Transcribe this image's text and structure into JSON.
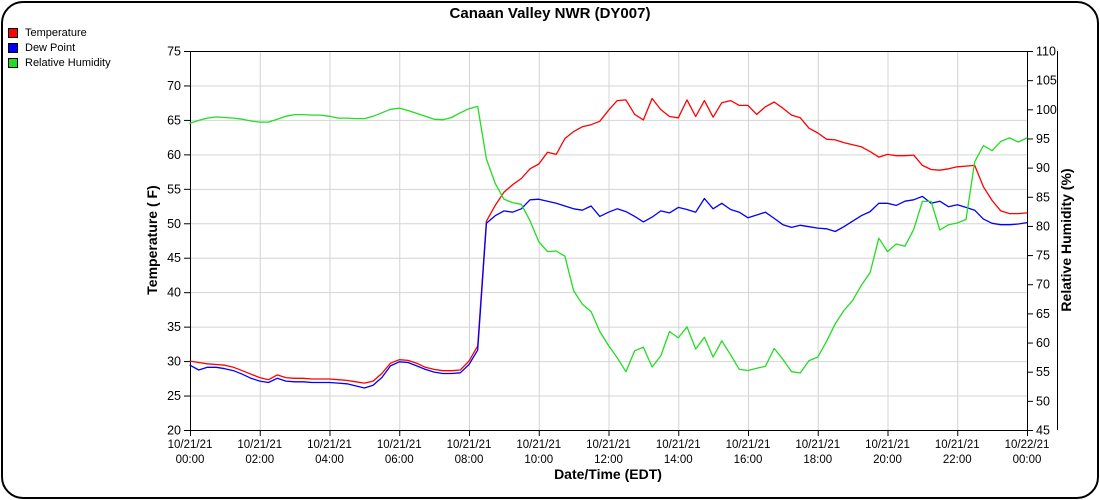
{
  "title": "Canaan Valley NWR (DY007)",
  "legend": {
    "items": [
      {
        "label": "Temperature",
        "color": "#ff0000"
      },
      {
        "label": "Dew Point",
        "color": "#0000ff"
      },
      {
        "label": "Relative Humidity",
        "color": "#22dd22"
      }
    ]
  },
  "axes": {
    "x": {
      "label": "Date/Time (EDT)"
    },
    "y_left": {
      "label": "Temperature ( F)",
      "min": 20,
      "max": 75,
      "ticks": [
        20,
        25,
        30,
        35,
        40,
        45,
        50,
        55,
        60,
        65,
        70,
        75
      ]
    },
    "y_right": {
      "label": "Relative Humidity (%)",
      "min": 45,
      "max": 110,
      "ticks": [
        45,
        50,
        55,
        60,
        65,
        70,
        75,
        80,
        85,
        90,
        95,
        100,
        105,
        110
      ]
    }
  },
  "chart_data": {
    "type": "line",
    "title": "Canaan Valley NWR (DY007)",
    "xlabel": "Date/Time (EDT)",
    "ylabel_left": "Temperature ( F)",
    "ylabel_right": "Relative Humidity (%)",
    "grid": true,
    "grid_color": "#d4d4d4",
    "axis_color": "#000000",
    "legend_position": "top-left",
    "x_ticks": [
      {
        "date": "10/21/21",
        "time": "00:00"
      },
      {
        "date": "10/21/21",
        "time": "02:00"
      },
      {
        "date": "10/21/21",
        "time": "04:00"
      },
      {
        "date": "10/21/21",
        "time": "06:00"
      },
      {
        "date": "10/21/21",
        "time": "08:00"
      },
      {
        "date": "10/21/21",
        "time": "10:00"
      },
      {
        "date": "10/21/21",
        "time": "12:00"
      },
      {
        "date": "10/21/21",
        "time": "14:00"
      },
      {
        "date": "10/21/21",
        "time": "16:00"
      },
      {
        "date": "10/21/21",
        "time": "18:00"
      },
      {
        "date": "10/21/21",
        "time": "20:00"
      },
      {
        "date": "10/21/21",
        "time": "22:00"
      },
      {
        "date": "10/22/21",
        "time": "00:00"
      }
    ],
    "x_hours": [
      0,
      0.25,
      0.5,
      0.75,
      1,
      1.25,
      1.5,
      1.75,
      2,
      2.25,
      2.5,
      2.75,
      3,
      3.25,
      3.5,
      3.75,
      4,
      4.25,
      4.5,
      4.75,
      5,
      5.25,
      5.5,
      5.75,
      6,
      6.25,
      6.5,
      6.75,
      7,
      7.25,
      7.5,
      7.75,
      8,
      8.25,
      8.5,
      8.75,
      9,
      9.25,
      9.5,
      9.75,
      10,
      10.25,
      10.5,
      10.75,
      11,
      11.25,
      11.5,
      11.75,
      12,
      12.25,
      12.5,
      12.75,
      13,
      13.25,
      13.5,
      13.75,
      14,
      14.25,
      14.5,
      14.75,
      15,
      15.25,
      15.5,
      15.75,
      16,
      16.25,
      16.5,
      16.75,
      17,
      17.25,
      17.5,
      17.75,
      18,
      18.25,
      18.5,
      18.75,
      19,
      19.25,
      19.5,
      19.75,
      20,
      20.25,
      20.5,
      20.75,
      21,
      21.25,
      21.5,
      21.75,
      22,
      22.25,
      22.5,
      22.75,
      23,
      23.25,
      23.5,
      23.75,
      24
    ],
    "series": [
      {
        "name": "Temperature",
        "color": "#ff0000",
        "axis": "left",
        "values": [
          30.0,
          29.8,
          29.6,
          29.5,
          29.4,
          29.1,
          28.6,
          28.1,
          27.6,
          27.3,
          28.0,
          27.6,
          27.5,
          27.5,
          27.4,
          27.4,
          27.4,
          27.3,
          27.2,
          27.0,
          26.8,
          27.1,
          28.2,
          29.7,
          30.2,
          30.1,
          29.7,
          29.1,
          28.8,
          28.6,
          28.6,
          28.7,
          30.0,
          32.2,
          50.3,
          52.6,
          54.5,
          55.6,
          56.5,
          57.9,
          58.6,
          60.3,
          60.0,
          62.3,
          63.3,
          64.0,
          64.3,
          64.8,
          66.4,
          67.8,
          67.9,
          65.8,
          65.0,
          68.1,
          66.5,
          65.5,
          65.3,
          67.9,
          65.5,
          67.8,
          65.4,
          67.5,
          67.8,
          67.1,
          67.1,
          65.8,
          66.9,
          67.6,
          66.7,
          65.7,
          65.3,
          63.8,
          63.1,
          62.2,
          62.1,
          61.7,
          61.4,
          61.1,
          60.4,
          59.6,
          60.0,
          59.8,
          59.8,
          59.9,
          58.4,
          57.8,
          57.7,
          57.9,
          58.2,
          58.3,
          58.4,
          55.3,
          53.3,
          51.8,
          51.4,
          51.4,
          51.5
        ]
      },
      {
        "name": "Dew Point",
        "color": "#0000ff",
        "axis": "left",
        "values": [
          29.4,
          28.7,
          29.1,
          29.1,
          28.9,
          28.6,
          28.1,
          27.5,
          27.1,
          26.9,
          27.5,
          27.1,
          27.0,
          27.0,
          26.9,
          26.9,
          26.9,
          26.8,
          26.7,
          26.4,
          26.1,
          26.5,
          27.6,
          29.3,
          29.9,
          29.8,
          29.3,
          28.8,
          28.4,
          28.2,
          28.2,
          28.3,
          29.5,
          31.6,
          50.0,
          51.1,
          51.8,
          51.6,
          52.1,
          53.4,
          53.5,
          53.2,
          52.9,
          52.5,
          52.1,
          51.9,
          52.5,
          51.0,
          51.6,
          52.1,
          51.7,
          51.0,
          50.2,
          50.9,
          51.8,
          51.5,
          52.3,
          52.0,
          51.6,
          53.6,
          52.1,
          52.9,
          52.0,
          51.6,
          50.8,
          51.2,
          51.6,
          50.7,
          49.8,
          49.4,
          49.7,
          49.5,
          49.3,
          49.2,
          48.8,
          49.5,
          50.3,
          51.1,
          51.7,
          52.9,
          52.9,
          52.6,
          53.2,
          53.4,
          53.9,
          52.9,
          53.2,
          52.4,
          52.7,
          52.3,
          51.9,
          50.6,
          50.0,
          49.8,
          49.8,
          49.9,
          50.1
        ]
      },
      {
        "name": "Relative Humidity",
        "color": "#22dd22",
        "axis": "right",
        "values": [
          97.6,
          98.1,
          98.5,
          98.7,
          98.6,
          98.5,
          98.3,
          98.0,
          97.8,
          97.8,
          98.3,
          98.8,
          99.1,
          99.1,
          99.0,
          99.0,
          98.8,
          98.5,
          98.5,
          98.4,
          98.4,
          98.8,
          99.4,
          100.0,
          100.2,
          99.8,
          99.3,
          98.8,
          98.3,
          98.2,
          98.6,
          99.4,
          100.1,
          100.5,
          91.5,
          87.3,
          84.6,
          84.0,
          83.7,
          80.9,
          77.3,
          75.6,
          75.7,
          74.8,
          68.9,
          66.6,
          65.3,
          61.9,
          59.5,
          57.4,
          55.0,
          58.6,
          59.2,
          55.8,
          57.7,
          61.9,
          60.8,
          62.7,
          58.9,
          60.9,
          57.5,
          60.3,
          57.9,
          55.4,
          55.2,
          55.6,
          55.9,
          59.0,
          57.1,
          55.0,
          54.8,
          56.9,
          57.5,
          60.2,
          63.2,
          65.5,
          67.2,
          69.8,
          72.0,
          77.9,
          75.6,
          76.9,
          76.5,
          79.4,
          84.2,
          84.2,
          79.3,
          80.2,
          80.5,
          81.1,
          91.0,
          93.8,
          92.9,
          94.5,
          95.1,
          94.4,
          95.1
        ]
      }
    ]
  }
}
